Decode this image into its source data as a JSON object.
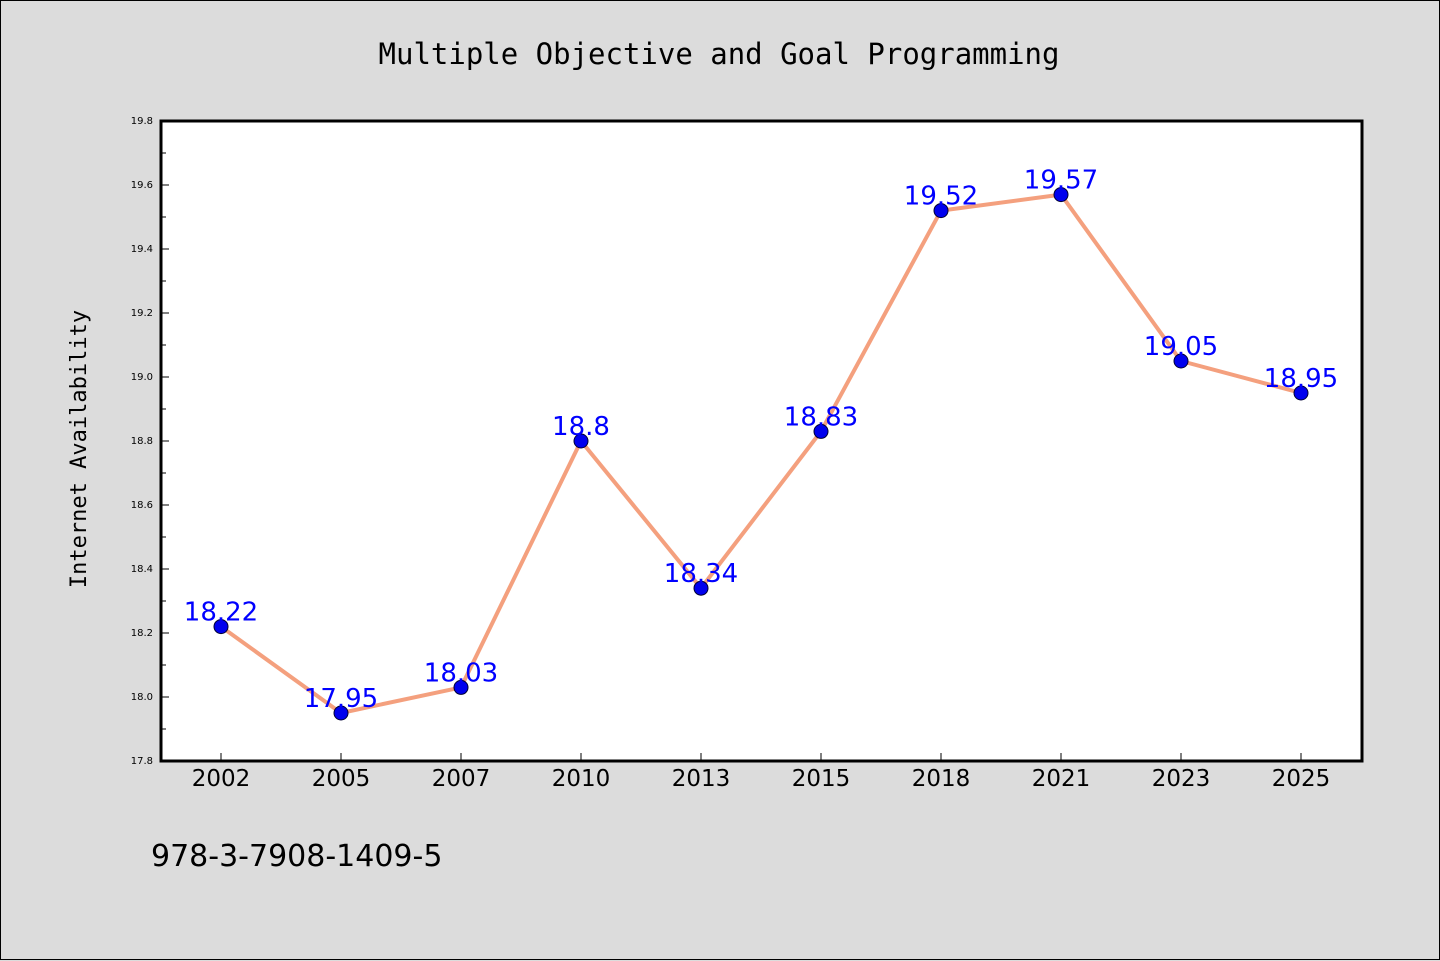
{
  "chart_data": {
    "type": "line",
    "title": "Multiple Objective and Goal Programming",
    "ylabel": "Internet Availability",
    "xlabel": "",
    "categories": [
      "2002",
      "2005",
      "2007",
      "2010",
      "2013",
      "2015",
      "2018",
      "2021",
      "2023",
      "2025"
    ],
    "values": [
      18.22,
      17.95,
      18.03,
      18.8,
      18.34,
      18.83,
      19.52,
      19.57,
      19.05,
      18.95
    ],
    "data_labels": [
      "18.22",
      "17.95",
      "18.03",
      "18.8",
      "18.34",
      "18.83",
      "19.52",
      "19.57",
      "19.05",
      "18.95"
    ],
    "ylim": [
      17.8,
      19.8
    ],
    "yticks": [
      "17.8",
      "18.0",
      "18.2",
      "18.4",
      "18.6",
      "18.8",
      "19.0",
      "19.2",
      "19.4",
      "19.6",
      "19.8"
    ],
    "grid": false,
    "line_color": "#f4a07e",
    "marker_color": "#0000ee",
    "label_color": "#0000ff"
  },
  "footer": {
    "isbn": "978-3-7908-1409-5"
  }
}
